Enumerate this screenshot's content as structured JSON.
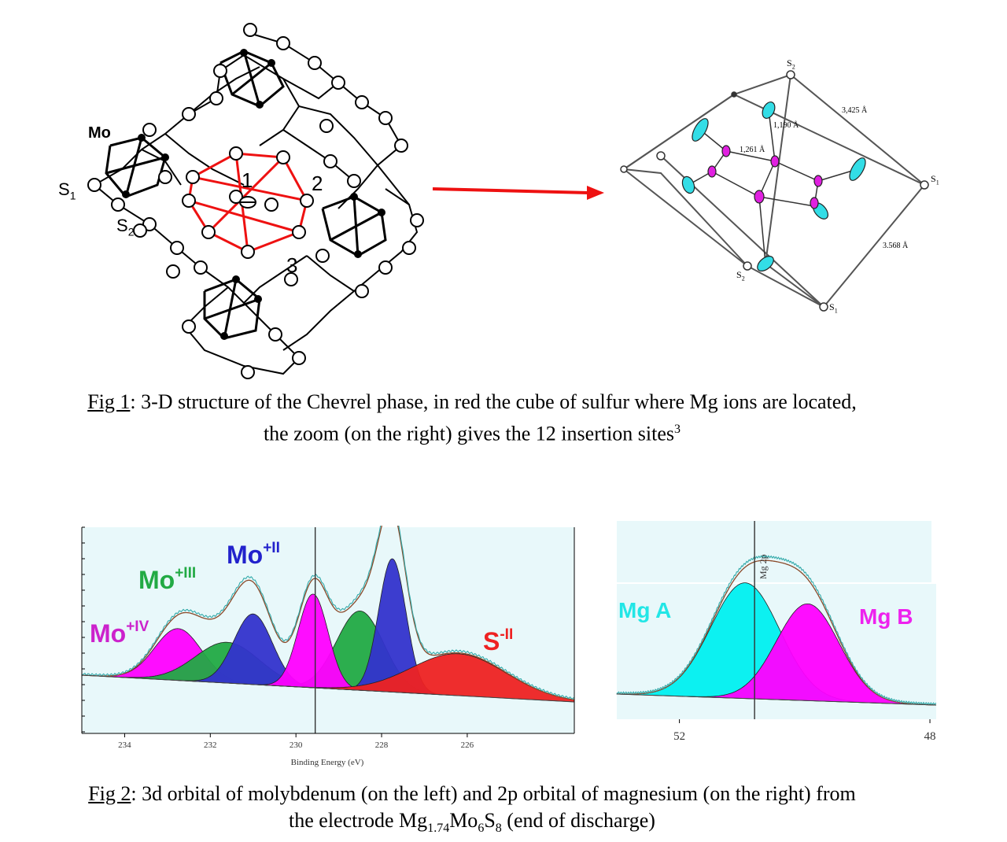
{
  "fig1": {
    "left_labels": {
      "mo": "Mo",
      "s1": "S",
      "s1_sub": "1",
      "s2": "S",
      "s2_sub": "2",
      "site1": "1",
      "site2": "2",
      "site3": "3"
    },
    "right_labels": {
      "s2_top": "S",
      "s2_top_sub": "2",
      "s1_right": "S",
      "s1_right_sub": "1",
      "s2_bottom": "S",
      "s2_bottom_sub": "2",
      "s1_bottom": "S",
      "s1_bottom_sub": "1",
      "d1": "3,425 Å",
      "d2": "1,190 Å",
      "d3": "1,261 Å",
      "d4": "3.568 Å"
    },
    "caption_ref": "Fig 1",
    "caption_line1": ": 3-D structure of the Chevrel phase, in red the cube of sulfur where Mg ions are located,",
    "caption_line2": "the zoom (on the right) gives the 12 insertion sites",
    "caption_sup": "3"
  },
  "fig2": {
    "mo_labels": {
      "mo_iv": "Mo",
      "mo_iv_sup": "+IV",
      "mo_iii": "Mo",
      "mo_iii_sup": "+III",
      "mo_ii": "Mo",
      "mo_ii_sup": "+II",
      "s_ii": "S",
      "s_ii_sup": "-II"
    },
    "mo_axis_label": "Binding Energy (eV)",
    "mg_labels": {
      "mg_a": "Mg A",
      "mg_b": "Mg B",
      "marker": "Mg 2p"
    },
    "caption_ref": "Fig 2",
    "caption_line1": ": 3d orbital of molybdenum (on the left) and 2p orbital of magnesium (on the right) from",
    "caption_line2_pre": "the electrode Mg",
    "caption_sub1": "1.74",
    "caption_mid1": "Mo",
    "caption_sub2": "6",
    "caption_mid2": "S",
    "caption_sub3": "8",
    "caption_post": " (end of discharge)"
  },
  "chart_data": [
    {
      "type": "area",
      "xlabel": "Binding Energy (eV)",
      "xlim": [
        235,
        223.5
      ],
      "x_ticks": [
        234,
        232,
        230,
        228,
        226
      ],
      "series": [
        {
          "name": "Mo+IV",
          "color": "#ff00ff",
          "components": [
            {
              "center": 232.75,
              "height": 0.47,
              "sigma": 0.55
            }
          ]
        },
        {
          "name": "Mo+III",
          "color": "#22aa44",
          "components": [
            {
              "center": 231.6,
              "height": 0.37,
              "sigma": 0.75
            },
            {
              "center": 228.5,
              "height": 0.72,
              "sigma": 0.55
            }
          ]
        },
        {
          "name": "Mo+II",
          "color": "#3333cc",
          "components": [
            {
              "center": 231.0,
              "height": 0.64,
              "sigma": 0.45
            },
            {
              "center": 227.75,
              "height": 1.21,
              "sigma": 0.32
            }
          ]
        },
        {
          "name": "",
          "color": "#ff00ff",
          "components": [
            {
              "center": 229.6,
              "height": 0.85,
              "sigma": 0.35
            }
          ]
        },
        {
          "name": "S-II",
          "color": "#ee2222",
          "components": [
            {
              "center": 226.2,
              "height": 0.38,
              "sigma": 1.1
            }
          ]
        }
      ],
      "marker_x": [
        229.55
      ]
    },
    {
      "type": "area",
      "xlim": [
        53.0,
        47.9
      ],
      "x_ticks": [
        52,
        48
      ],
      "series": [
        {
          "name": "Mg A",
          "color": "#00f0f0",
          "components": [
            {
              "center": 50.95,
              "height": 0.98,
              "sigma": 0.55
            }
          ]
        },
        {
          "name": "Mg B",
          "color": "#ff00ff",
          "components": [
            {
              "center": 49.95,
              "height": 0.82,
              "sigma": 0.5
            }
          ]
        }
      ],
      "marker_x": [
        50.8
      ]
    }
  ]
}
